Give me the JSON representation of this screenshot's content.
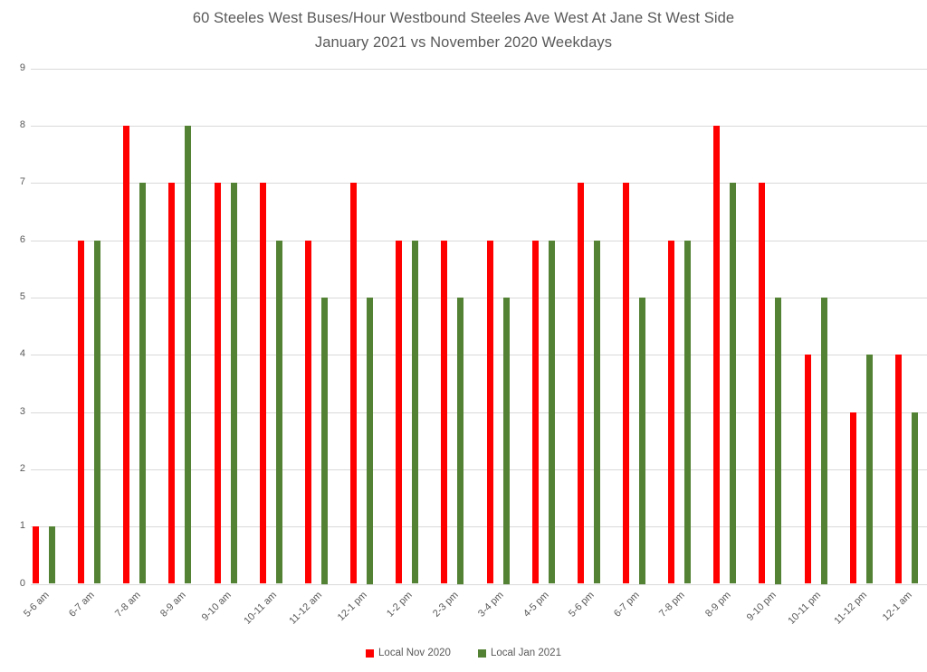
{
  "title": {
    "line1": "60 Steeles West Buses/Hour Westbound Steeles Ave West At Jane St West Side",
    "line2": "January 2021 vs November 2020 Weekdays"
  },
  "colors": {
    "nov_2020": "#ff0000",
    "jan_2021": "#548235",
    "gridline": "#d9d9d9",
    "axis_text": "#595959",
    "title_text": "#595959",
    "background": "#ffffff"
  },
  "chart_data": {
    "type": "bar",
    "title": "60 Steeles West Buses/Hour Westbound Steeles Ave West At Jane St West Side",
    "subtitle": "January 2021 vs November 2020 Weekdays",
    "xlabel": "",
    "ylabel": "",
    "ylim": [
      0,
      9
    ],
    "yticks": [
      0,
      1,
      2,
      3,
      4,
      5,
      6,
      7,
      8,
      9
    ],
    "grid": true,
    "legend_position": "bottom",
    "categories": [
      "5-6 am",
      "6-7 am",
      "7-8 am",
      "8-9 am",
      "9-10 am",
      "10-11 am",
      "11-12 am",
      "12-1 pm",
      "1-2 pm",
      "2-3 pm",
      "3-4 pm",
      "4-5 pm",
      "5-6 pm",
      "6-7 pm",
      "7-8 pm",
      "8-9 pm",
      "9-10 pm",
      "10-11 pm",
      "11-12 pm",
      "12-1 am"
    ],
    "series": [
      {
        "name": "Local Nov 2020",
        "color": "#ff0000",
        "values": [
          1,
          6,
          8,
          7,
          7,
          7,
          6,
          7,
          6,
          6,
          6,
          6,
          7,
          7,
          6,
          8,
          7,
          4,
          3,
          4
        ]
      },
      {
        "name": "Local Jan 2021",
        "color": "#548235",
        "values": [
          1,
          6,
          7,
          8,
          7,
          6,
          5,
          5,
          6,
          5,
          5,
          6,
          6,
          5,
          6,
          7,
          5,
          5,
          4,
          3
        ]
      }
    ]
  }
}
